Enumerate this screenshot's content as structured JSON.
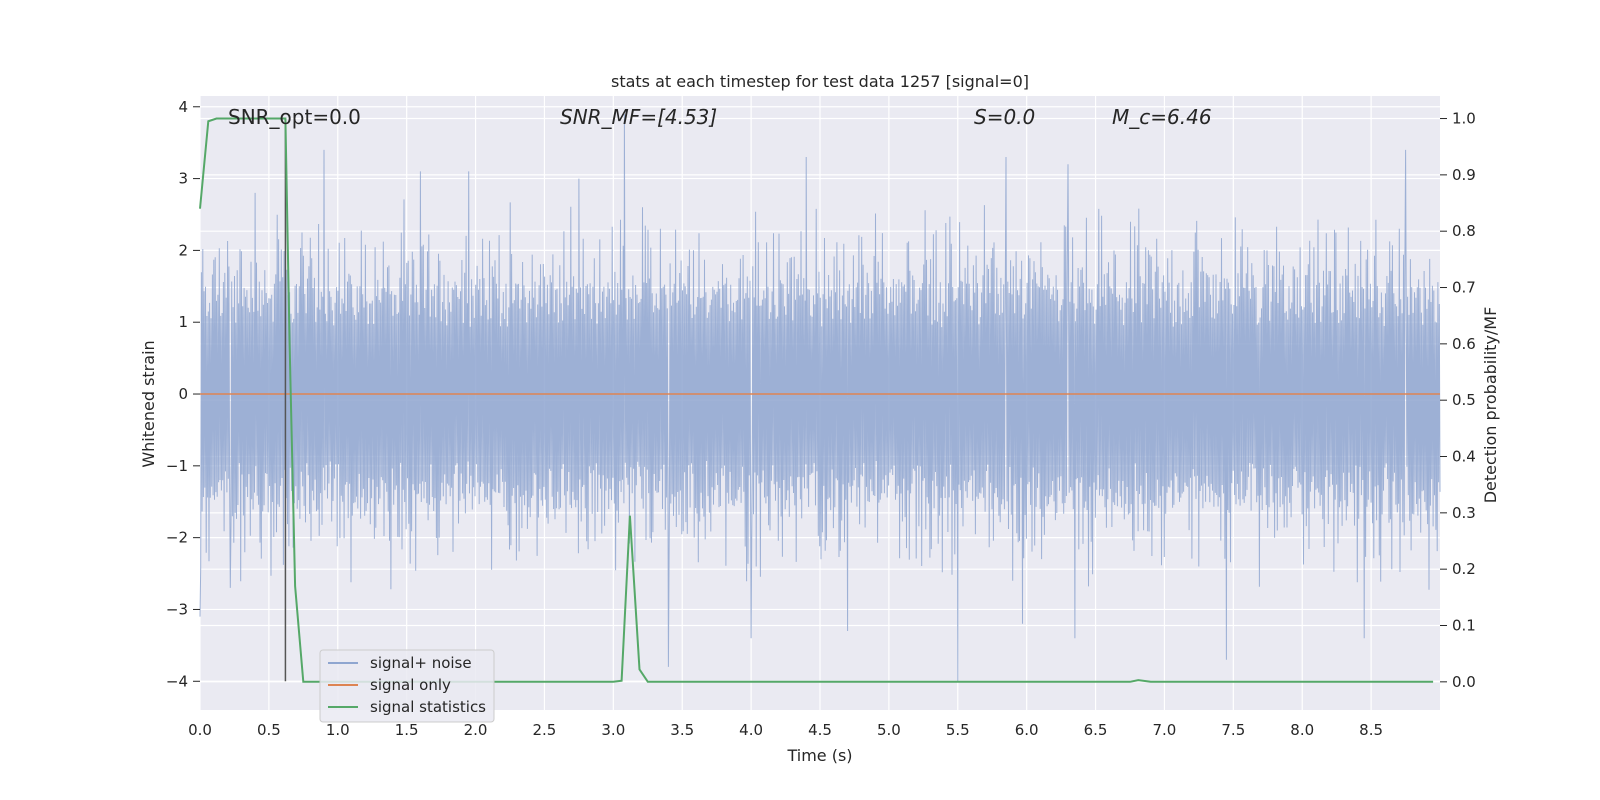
{
  "chart_data": {
    "type": "line",
    "title": "stats at each timestep for test data 1257 [signal=0]",
    "xlabel": "Time (s)",
    "ylabel": "Whitened strain",
    "ylabel_right": "Detection probability/MF",
    "xlim": [
      0,
      9.0
    ],
    "ylim": [
      -4.4,
      4.15
    ],
    "ylim_right": [
      -0.05,
      1.04
    ],
    "x_ticks": [
      "0.0",
      "0.5",
      "1.0",
      "1.5",
      "2.0",
      "2.5",
      "3.0",
      "3.5",
      "4.0",
      "4.5",
      "5.0",
      "5.5",
      "6.0",
      "6.5",
      "7.0",
      "7.5",
      "8.0",
      "8.5"
    ],
    "y_ticks": [
      "−4",
      "−3",
      "−2",
      "−1",
      "0",
      "1",
      "2",
      "3",
      "4"
    ],
    "y_ticks_right": [
      "0.0",
      "0.1",
      "0.2",
      "0.3",
      "0.4",
      "0.5",
      "0.6",
      "0.7",
      "0.8",
      "0.9",
      "1.0"
    ],
    "grid": true,
    "legend_position": "lower-left",
    "annotations": [
      {
        "text": "SNR_opt=0.0",
        "x": 0.2,
        "y": 3.9
      },
      {
        "text": "SNR_MF=[4.53]",
        "x": 2.6,
        "y": 3.9
      },
      {
        "text": "S=0.0",
        "x": 5.6,
        "y": 3.9
      },
      {
        "text": "M_c=6.46",
        "x": 6.6,
        "y": 3.9
      }
    ],
    "vline_x": 0.62,
    "series": [
      {
        "name": "signal+ noise",
        "color": "#8fa6d0",
        "axis": "left",
        "description_range": [
          -1.7,
          1.7
        ],
        "peaks": [
          {
            "x": 0.0,
            "y": -3.1
          },
          {
            "x": 0.22,
            "y": -2.7
          },
          {
            "x": 0.4,
            "y": 2.8
          },
          {
            "x": 0.9,
            "y": 3.4
          },
          {
            "x": 1.6,
            "y": 3.1
          },
          {
            "x": 1.95,
            "y": 3.1
          },
          {
            "x": 2.75,
            "y": 3.0
          },
          {
            "x": 3.08,
            "y": 3.9
          },
          {
            "x": 3.4,
            "y": -3.8
          },
          {
            "x": 4.4,
            "y": 3.3
          },
          {
            "x": 4.0,
            "y": -3.4
          },
          {
            "x": 4.7,
            "y": -3.3
          },
          {
            "x": 5.5,
            "y": -4.0
          },
          {
            "x": 5.85,
            "y": 3.3
          },
          {
            "x": 5.97,
            "y": -3.2
          },
          {
            "x": 6.3,
            "y": 3.2
          },
          {
            "x": 6.35,
            "y": -3.4
          },
          {
            "x": 7.45,
            "y": -3.7
          },
          {
            "x": 8.45,
            "y": -3.4
          },
          {
            "x": 8.75,
            "y": 3.4
          }
        ]
      },
      {
        "name": "signal only",
        "color": "#dd8452",
        "axis": "left",
        "x": [
          0,
          9.0
        ],
        "y": [
          0,
          0
        ]
      },
      {
        "name": "signal statistics",
        "color": "#55a868",
        "axis": "right",
        "x": [
          0.0,
          0.06,
          0.12,
          0.2,
          0.3,
          0.4,
          0.5,
          0.6,
          0.62,
          0.65,
          0.69,
          0.75,
          0.8,
          1.0,
          1.5,
          2.0,
          2.5,
          3.0,
          3.06,
          3.12,
          3.19,
          3.25,
          3.35,
          4.0,
          5.0,
          6.0,
          6.75,
          6.81,
          6.9,
          7.5,
          8.0,
          8.5,
          8.95
        ],
        "y": [
          0.84,
          0.995,
          1.0,
          1.0,
          1.0,
          1.0,
          1.0,
          1.0,
          1.0,
          0.6,
          0.17,
          0.0,
          0.0,
          0.0,
          0.0,
          0.0,
          0.0,
          0.0,
          0.002,
          0.295,
          0.022,
          0.0,
          0.0,
          0.0,
          0.0,
          0.0,
          0.0,
          0.003,
          0.0,
          0.0,
          0.0,
          0.0,
          0.0
        ]
      }
    ]
  }
}
